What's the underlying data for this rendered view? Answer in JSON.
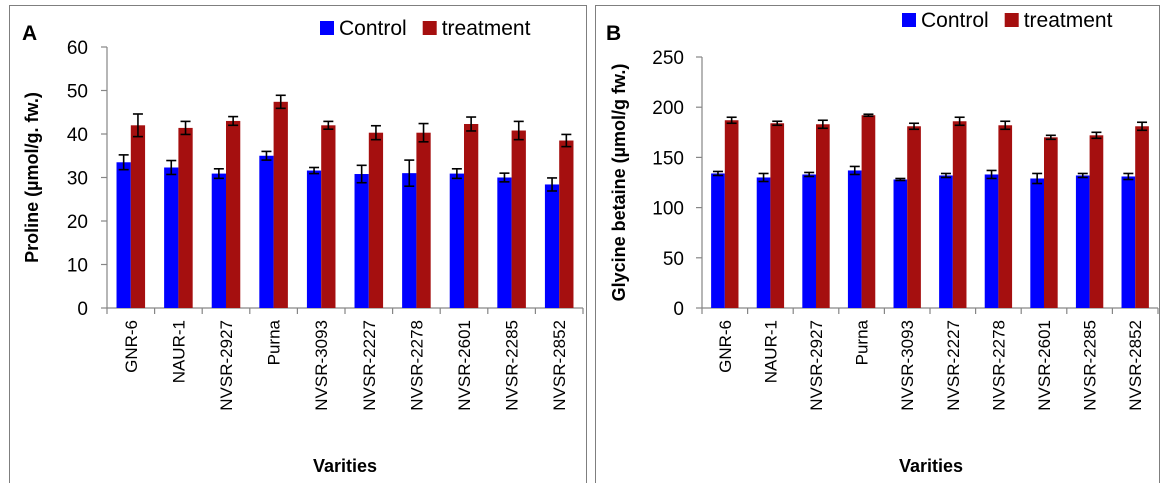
{
  "colors": {
    "control": "#0000ff",
    "treatment": "#a50f0f"
  },
  "chart_data": [
    {
      "type": "bar",
      "panel_label": "A",
      "categories": [
        "GNR-6",
        "NAUR-1",
        "NVSR-2927",
        "Purna",
        "NVSR-3093",
        "NVSR-2227",
        "NVSR-2278",
        "NVSR-2601",
        "NVSR-2285",
        "NVSR-2852"
      ],
      "series": [
        {
          "name": "Control",
          "values": [
            33.5,
            32.3,
            30.9,
            35.0,
            31.6,
            30.8,
            31.0,
            30.9,
            30.0,
            28.4
          ],
          "errors": [
            1.7,
            1.6,
            1.1,
            1.0,
            0.7,
            2.0,
            3.0,
            1.1,
            1.0,
            1.5
          ]
        },
        {
          "name": "treatment",
          "values": [
            42.0,
            41.4,
            43.0,
            47.4,
            42.0,
            40.3,
            40.3,
            42.3,
            40.8,
            38.5
          ],
          "errors": [
            2.6,
            1.5,
            1.0,
            1.5,
            0.9,
            1.6,
            2.1,
            1.6,
            2.1,
            1.4
          ]
        }
      ],
      "xlabel": "Varities",
      "ylabel": "Proline (µmol/g. fw.)",
      "ylim": [
        0,
        60
      ],
      "yticks": [
        0,
        10,
        20,
        30,
        40,
        50,
        60
      ],
      "legend": "top-right",
      "grid": false
    },
    {
      "type": "bar",
      "panel_label": "B",
      "categories": [
        "GNR-6",
        "NAUR-1",
        "NVSR-2927",
        "Purna",
        "NVSR-3093",
        "NVSR-2227",
        "NVSR-2278",
        "NVSR-2601",
        "NVSR-2285",
        "NVSR-2852"
      ],
      "series": [
        {
          "name": "Control",
          "values": [
            134,
            130,
            133,
            137,
            128,
            132,
            133,
            129,
            132,
            131
          ],
          "errors": [
            2,
            4,
            2,
            4,
            1,
            2,
            4,
            5,
            2,
            3
          ]
        },
        {
          "name": "treatment",
          "values": [
            187,
            184,
            183,
            192,
            181,
            186,
            182,
            170,
            172,
            181
          ],
          "errors": [
            3,
            2,
            4,
            1,
            3,
            4,
            4,
            2,
            3,
            4
          ]
        }
      ],
      "xlabel": "Varities",
      "ylabel": "Glycine betaine (µmol/g fw.)",
      "ylim": [
        0,
        250
      ],
      "yticks": [
        0,
        50,
        100,
        150,
        200,
        250
      ],
      "legend": "top-right",
      "grid": false
    }
  ]
}
